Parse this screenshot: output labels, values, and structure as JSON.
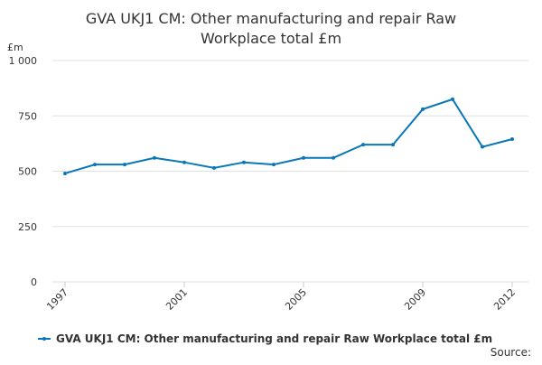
{
  "chart_data": {
    "type": "line",
    "title": "GVA UKJ1 CM: Other manufacturing and repair Raw Workplace total £m",
    "y_label": "£m",
    "source": "Source:",
    "x": [
      1997,
      1998,
      1999,
      2000,
      2001,
      2002,
      2003,
      2004,
      2005,
      2006,
      2007,
      2008,
      2009,
      2010,
      2011,
      2012
    ],
    "series": [
      {
        "name": "GVA UKJ1 CM: Other manufacturing and repair Raw Workplace total £m",
        "color": "#0a77b8",
        "values": [
          490,
          530,
          530,
          560,
          540,
          515,
          540,
          530,
          560,
          560,
          620,
          620,
          780,
          825,
          610,
          645
        ]
      }
    ],
    "xlim": [
      1997,
      2012
    ],
    "xticks": [
      1997,
      2001,
      2005,
      2009,
      2012
    ],
    "ylim": [
      0,
      1000
    ],
    "yticks": [
      0,
      250,
      500,
      750,
      {
        "value": 1000,
        "label": "1 000"
      }
    ],
    "grid": true
  }
}
